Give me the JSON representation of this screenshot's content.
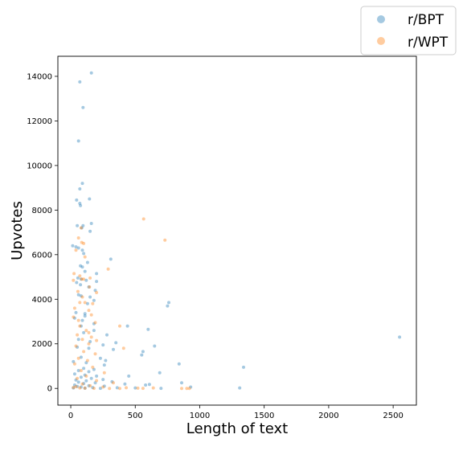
{
  "chart_data": {
    "type": "scatter",
    "xlabel": "Length of text",
    "ylabel": "Upvotes",
    "xlim": [
      -100,
      2680
    ],
    "ylim": [
      -750,
      14900
    ],
    "xticks": [
      0,
      500,
      1000,
      1500,
      2000,
      2500
    ],
    "yticks": [
      0,
      2000,
      4000,
      6000,
      8000,
      10000,
      12000,
      14000
    ],
    "grid": false,
    "legend_position": "top-right",
    "marker": "point",
    "alpha": 0.4,
    "series": [
      {
        "name": "r/BPT",
        "color": "#1f77b4",
        "points": [
          [
            160,
            14150
          ],
          [
            70,
            13750
          ],
          [
            95,
            12600
          ],
          [
            60,
            11100
          ],
          [
            90,
            9200
          ],
          [
            70,
            8950
          ],
          [
            145,
            8500
          ],
          [
            45,
            8450
          ],
          [
            70,
            8300
          ],
          [
            75,
            8200
          ],
          [
            160,
            7400
          ],
          [
            50,
            7300
          ],
          [
            95,
            7300
          ],
          [
            85,
            7200
          ],
          [
            150,
            7050
          ],
          [
            15,
            6400
          ],
          [
            40,
            6350
          ],
          [
            60,
            6300
          ],
          [
            90,
            6200
          ],
          [
            100,
            6050
          ],
          [
            310,
            5800
          ],
          [
            130,
            5650
          ],
          [
            75,
            5500
          ],
          [
            90,
            5450
          ],
          [
            110,
            5250
          ],
          [
            200,
            5150
          ],
          [
            55,
            4950
          ],
          [
            80,
            4900
          ],
          [
            120,
            4850
          ],
          [
            200,
            4800
          ],
          [
            45,
            4750
          ],
          [
            75,
            4650
          ],
          [
            140,
            4550
          ],
          [
            190,
            4400
          ],
          [
            60,
            4200
          ],
          [
            80,
            4150
          ],
          [
            150,
            4100
          ],
          [
            180,
            3950
          ],
          [
            130,
            3800
          ],
          [
            760,
            3850
          ],
          [
            750,
            3700
          ],
          [
            40,
            3400
          ],
          [
            110,
            3350
          ],
          [
            110,
            3250
          ],
          [
            30,
            3150
          ],
          [
            90,
            3050
          ],
          [
            180,
            2900
          ],
          [
            80,
            2800
          ],
          [
            440,
            2800
          ],
          [
            600,
            2650
          ],
          [
            180,
            2600
          ],
          [
            100,
            2500
          ],
          [
            280,
            2400
          ],
          [
            2550,
            2300
          ],
          [
            60,
            2200
          ],
          [
            150,
            2100
          ],
          [
            350,
            2050
          ],
          [
            250,
            1950
          ],
          [
            650,
            1900
          ],
          [
            50,
            1850
          ],
          [
            140,
            1800
          ],
          [
            330,
            1750
          ],
          [
            560,
            1650
          ],
          [
            550,
            1500
          ],
          [
            80,
            1400
          ],
          [
            230,
            1350
          ],
          [
            270,
            1250
          ],
          [
            20,
            1200
          ],
          [
            120,
            1150
          ],
          [
            840,
            1100
          ],
          [
            260,
            1050
          ],
          [
            1340,
            950
          ],
          [
            100,
            900
          ],
          [
            180,
            850
          ],
          [
            60,
            800
          ],
          [
            140,
            750
          ],
          [
            690,
            700
          ],
          [
            30,
            650
          ],
          [
            110,
            600
          ],
          [
            200,
            550
          ],
          [
            450,
            550
          ],
          [
            80,
            500
          ],
          [
            160,
            450
          ],
          [
            250,
            400
          ],
          [
            40,
            380
          ],
          [
            120,
            340
          ],
          [
            320,
            300
          ],
          [
            60,
            280
          ],
          [
            190,
            250
          ],
          [
            860,
            250
          ],
          [
            100,
            220
          ],
          [
            420,
            200
          ],
          [
            610,
            180
          ],
          [
            580,
            150
          ],
          [
            30,
            150
          ],
          [
            140,
            120
          ],
          [
            260,
            100
          ],
          [
            50,
            90
          ],
          [
            930,
            60
          ],
          [
            1310,
            20
          ],
          [
            80,
            60
          ],
          [
            170,
            40
          ],
          [
            360,
            30
          ],
          [
            500,
            20
          ],
          [
            20,
            20
          ],
          [
            110,
            10
          ],
          [
            230,
            5
          ],
          [
            700,
            5
          ]
        ]
      },
      {
        "name": "r/WPT",
        "color": "#ff7f0e",
        "points": [
          [
            565,
            7600
          ],
          [
            730,
            6650
          ],
          [
            80,
            7200
          ],
          [
            60,
            6750
          ],
          [
            85,
            6550
          ],
          [
            100,
            6500
          ],
          [
            40,
            6200
          ],
          [
            110,
            5900
          ],
          [
            25,
            5150
          ],
          [
            70,
            5050
          ],
          [
            150,
            4950
          ],
          [
            290,
            5350
          ],
          [
            20,
            4850
          ],
          [
            85,
            4900
          ],
          [
            100,
            4900
          ],
          [
            145,
            4550
          ],
          [
            55,
            4350
          ],
          [
            200,
            4300
          ],
          [
            90,
            4100
          ],
          [
            70,
            3850
          ],
          [
            110,
            3850
          ],
          [
            170,
            3800
          ],
          [
            30,
            3600
          ],
          [
            140,
            3500
          ],
          [
            20,
            3200
          ],
          [
            160,
            3300
          ],
          [
            60,
            3050
          ],
          [
            190,
            2950
          ],
          [
            70,
            2800
          ],
          [
            380,
            2800
          ],
          [
            120,
            2600
          ],
          [
            140,
            2500
          ],
          [
            50,
            2400
          ],
          [
            160,
            2300
          ],
          [
            90,
            2200
          ],
          [
            200,
            2150
          ],
          [
            140,
            2000
          ],
          [
            410,
            1800
          ],
          [
            40,
            1900
          ],
          [
            100,
            1650
          ],
          [
            190,
            1550
          ],
          [
            60,
            1350
          ],
          [
            130,
            1250
          ],
          [
            30,
            1100
          ],
          [
            170,
            950
          ],
          [
            80,
            800
          ],
          [
            260,
            700
          ],
          [
            120,
            550
          ],
          [
            50,
            450
          ],
          [
            200,
            350
          ],
          [
            330,
            250
          ],
          [
            90,
            200
          ],
          [
            150,
            120
          ],
          [
            40,
            80
          ],
          [
            250,
            60
          ],
          [
            430,
            30
          ],
          [
            520,
            10
          ],
          [
            560,
            5
          ],
          [
            640,
            20
          ],
          [
            860,
            0
          ],
          [
            900,
            0
          ],
          [
            920,
            0
          ],
          [
            20,
            40
          ],
          [
            70,
            20
          ],
          [
            110,
            10
          ],
          [
            180,
            5
          ],
          [
            300,
            0
          ],
          [
            380,
            0
          ]
        ]
      }
    ]
  },
  "legend": {
    "items": [
      {
        "label": "r/BPT",
        "color": "#1f77b4"
      },
      {
        "label": "r/WPT",
        "color": "#ff7f0e"
      }
    ]
  }
}
